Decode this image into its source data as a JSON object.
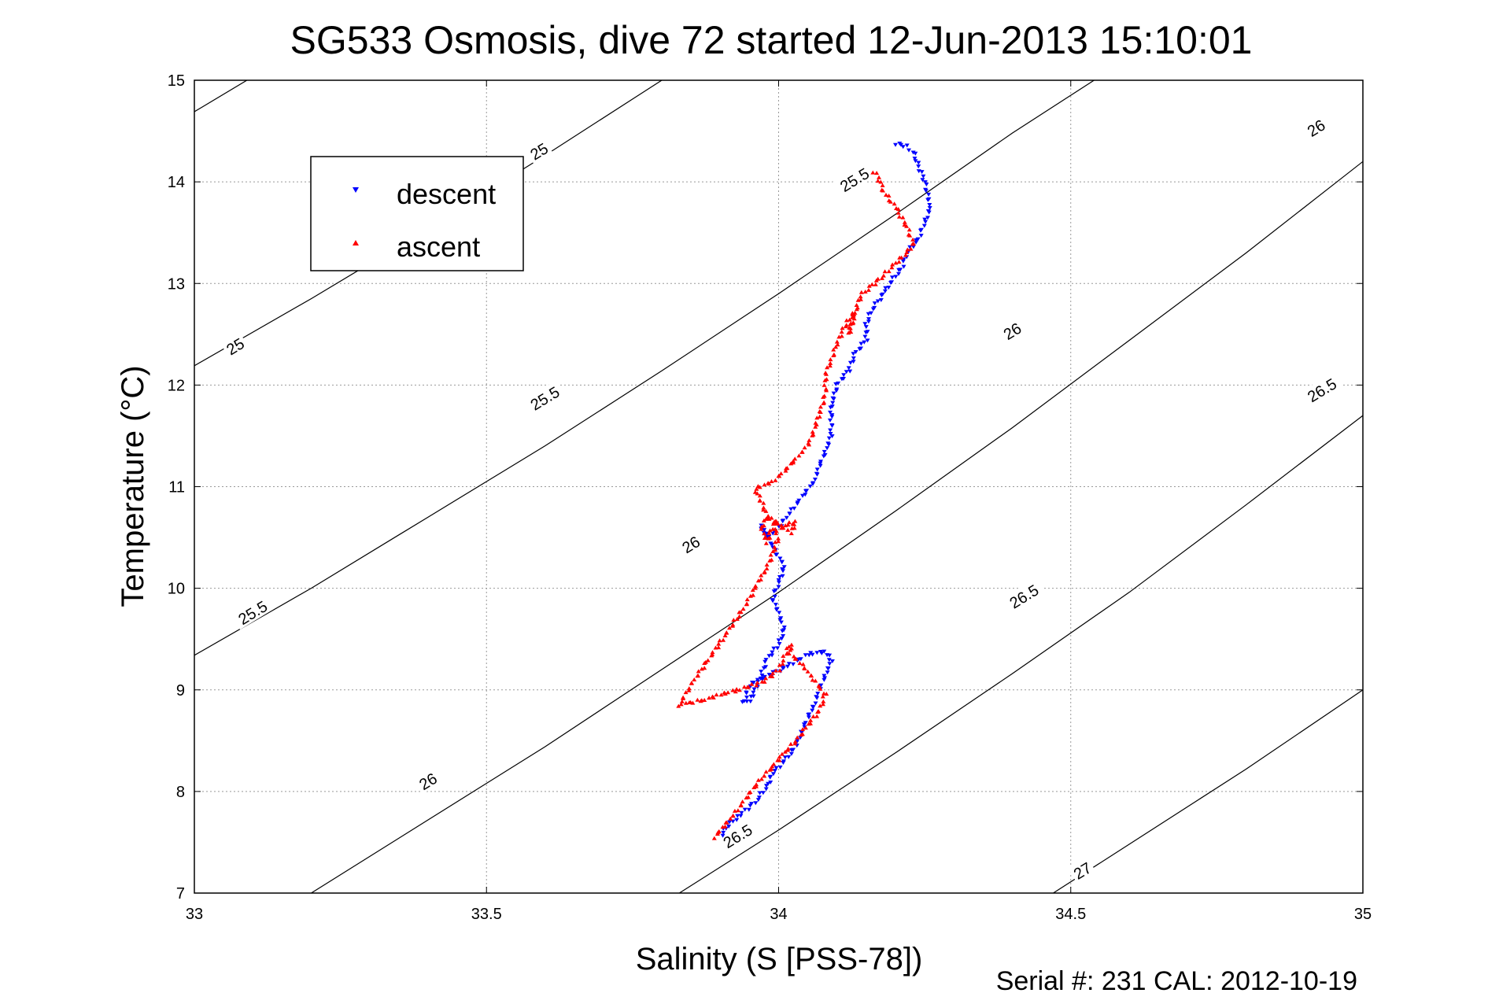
{
  "chart_data": {
    "type": "scatter",
    "title": "SG533 Osmosis, dive 72 started 12-Jun-2013 15:10:01",
    "xlabel": "Salinity (S [PSS-78])",
    "ylabel": "Temperature (°C)",
    "xlim": [
      33,
      35
    ],
    "ylim": [
      7,
      15
    ],
    "xticks": [
      "33",
      "33.5",
      "34",
      "34.5",
      "35"
    ],
    "yticks": [
      "7",
      "8",
      "9",
      "10",
      "11",
      "12",
      "13",
      "14",
      "15"
    ],
    "grid": true,
    "legend_position": "top-left",
    "footer": "Serial #: 231  CAL: 2012-10-19",
    "contours": [
      {
        "label": "25",
        "points": [
          [
            33.0,
            14.69
          ],
          [
            33.09,
            15.0
          ]
        ],
        "label_at": [
          [
            33.59,
            14.3
          ]
        ]
      },
      {
        "label": "25",
        "points": [
          [
            33.0,
            12.19
          ],
          [
            33.2,
            12.85
          ],
          [
            33.4,
            13.54
          ],
          [
            33.6,
            14.26
          ],
          [
            33.8,
            15.0
          ]
        ],
        "label_at": [
          [
            33.07,
            12.38
          ]
        ]
      },
      {
        "label": "25.5",
        "points": [
          [
            33.0,
            9.34
          ],
          [
            33.2,
            10.0
          ],
          [
            33.4,
            10.7
          ],
          [
            33.6,
            11.4
          ],
          [
            33.8,
            12.14
          ],
          [
            34.0,
            12.9
          ],
          [
            34.2,
            13.68
          ],
          [
            34.4,
            14.48
          ],
          [
            34.54,
            15.0
          ]
        ],
        "label_at": [
          [
            33.6,
            11.87
          ],
          [
            33.1,
            9.76
          ],
          [
            34.13,
            14.02
          ]
        ]
      },
      {
        "label": "26",
        "points": [
          [
            33.2,
            7.0
          ],
          [
            33.4,
            7.72
          ],
          [
            33.6,
            8.44
          ],
          [
            33.8,
            9.2
          ],
          [
            34.0,
            9.96
          ],
          [
            34.2,
            10.76
          ],
          [
            34.4,
            11.58
          ],
          [
            34.6,
            12.44
          ],
          [
            34.8,
            13.3
          ],
          [
            35.0,
            14.2
          ]
        ],
        "label_at": [
          [
            33.4,
            8.1
          ],
          [
            33.85,
            10.43
          ],
          [
            34.4,
            12.53
          ],
          [
            34.92,
            14.53
          ]
        ]
      },
      {
        "label": "26.5",
        "points": [
          [
            33.83,
            7.0
          ],
          [
            34.0,
            7.62
          ],
          [
            34.2,
            8.38
          ],
          [
            34.4,
            9.16
          ],
          [
            34.6,
            9.96
          ],
          [
            34.8,
            10.82
          ],
          [
            35.0,
            11.7
          ]
        ],
        "label_at": [
          [
            33.93,
            7.56
          ],
          [
            34.42,
            9.92
          ],
          [
            34.93,
            11.95
          ]
        ]
      },
      {
        "label": "27",
        "points": [
          [
            34.47,
            7.0
          ],
          [
            34.6,
            7.48
          ],
          [
            34.8,
            8.22
          ],
          [
            35.0,
            9.0
          ]
        ],
        "label_at": [
          [
            34.52,
            7.22
          ]
        ]
      }
    ],
    "series": [
      {
        "name": "descent",
        "color": "#0000ff",
        "marker": "triangle-down",
        "x": [
          34.2,
          34.22,
          34.23,
          34.24,
          34.25,
          34.26,
          34.25,
          34.24,
          34.22,
          34.21,
          34.19,
          34.18,
          34.16,
          34.15,
          34.15,
          34.13,
          34.12,
          34.1,
          34.09,
          34.09,
          34.09,
          34.08,
          34.07,
          34.06,
          34.04,
          34.02,
          34.0,
          33.98,
          33.97,
          33.99,
          34.01,
          34.0,
          33.99,
          34.0,
          34.01,
          34.0,
          33.98,
          33.97,
          33.96,
          33.95,
          33.94,
          33.95,
          34.02,
          34.05,
          34.08,
          34.09,
          34.08,
          34.07,
          34.06,
          34.05,
          34.04,
          34.03,
          34.01,
          33.99,
          33.98,
          33.96,
          33.93,
          33.91,
          33.9
        ],
        "y": [
          14.38,
          14.35,
          14.3,
          14.15,
          14.0,
          13.75,
          13.6,
          13.45,
          13.3,
          13.15,
          13.0,
          12.9,
          12.75,
          12.6,
          12.45,
          12.3,
          12.15,
          12.0,
          11.8,
          11.65,
          11.5,
          11.35,
          11.2,
          11.05,
          10.9,
          10.75,
          10.6,
          10.5,
          10.62,
          10.4,
          10.22,
          10.05,
          9.9,
          9.75,
          9.6,
          9.45,
          9.3,
          9.15,
          9.0,
          8.9,
          8.87,
          9.05,
          9.25,
          9.35,
          9.38,
          9.28,
          9.15,
          9.0,
          8.85,
          8.72,
          8.6,
          8.45,
          8.3,
          8.18,
          8.05,
          7.9,
          7.75,
          7.65,
          7.55
        ]
      },
      {
        "name": "ascent",
        "color": "#ff0000",
        "marker": "triangle-up",
        "x": [
          33.89,
          33.91,
          33.93,
          33.95,
          33.97,
          33.99,
          34.01,
          34.03,
          34.05,
          34.07,
          34.08,
          34.06,
          34.04,
          34.02,
          34.02,
          34.01,
          34.0,
          33.98,
          33.96,
          33.93,
          33.9,
          33.87,
          33.84,
          33.83,
          33.85,
          33.88,
          33.91,
          33.94,
          33.96,
          33.97,
          33.98,
          33.99,
          34.0,
          33.99,
          33.98,
          33.97,
          33.98,
          34.01,
          34.03,
          34.02,
          34.0,
          33.98,
          33.97,
          33.96,
          33.99,
          34.01,
          34.03,
          34.05,
          34.06,
          34.07,
          34.08,
          34.08,
          34.09,
          34.1,
          34.11,
          34.13,
          34.12,
          34.14,
          34.16,
          34.18,
          34.2,
          34.22,
          34.23,
          34.22,
          34.2,
          34.18,
          34.17,
          34.16
        ],
        "y": [
          7.55,
          7.68,
          7.82,
          7.98,
          8.12,
          8.25,
          8.38,
          8.5,
          8.65,
          8.8,
          8.95,
          9.1,
          9.25,
          9.35,
          9.45,
          9.32,
          9.2,
          9.1,
          9.05,
          9.0,
          8.95,
          8.9,
          8.86,
          8.85,
          9.05,
          9.3,
          9.55,
          9.8,
          10.0,
          10.12,
          10.2,
          10.35,
          10.5,
          10.62,
          10.45,
          10.6,
          10.68,
          10.62,
          10.65,
          10.55,
          10.62,
          10.72,
          10.85,
          10.98,
          11.05,
          11.15,
          11.28,
          11.4,
          11.55,
          11.72,
          11.9,
          12.1,
          12.25,
          12.4,
          12.55,
          12.72,
          12.5,
          12.88,
          12.98,
          13.08,
          13.2,
          13.3,
          13.4,
          13.55,
          13.75,
          13.9,
          14.05,
          14.12
        ]
      }
    ]
  }
}
